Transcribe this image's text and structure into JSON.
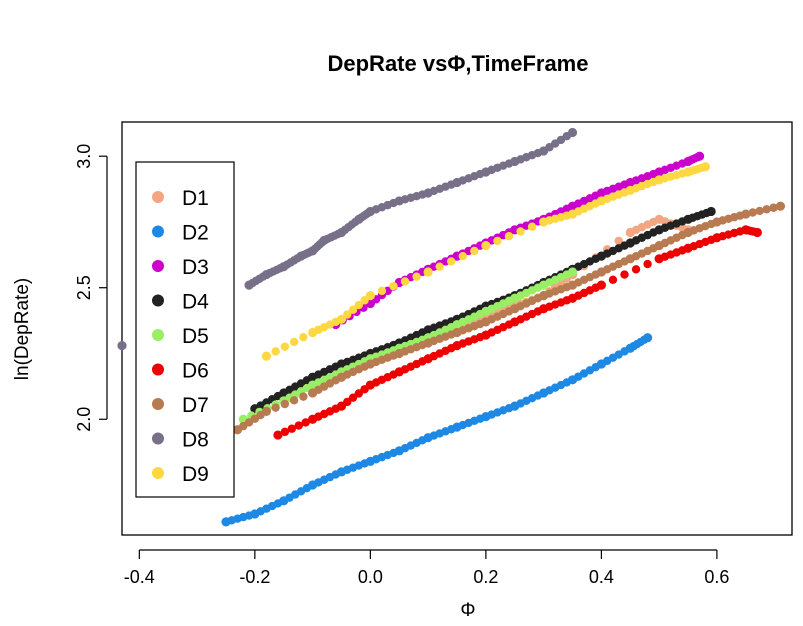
{
  "chart_data": {
    "type": "scatter",
    "title": "DepRate vsΦ,TimeFrame",
    "xlabel": "Φ",
    "ylabel": "ln(DepRate)",
    "xlim": [
      -0.43,
      0.73
    ],
    "ylim": [
      1.56,
      3.13
    ],
    "xticks": [
      "-0.4",
      "-0.2",
      "0.0",
      "0.2",
      "0.4",
      "0.6"
    ],
    "xtick_values": [
      -0.4,
      -0.2,
      0.0,
      0.2,
      0.4,
      0.6
    ],
    "yticks": [
      "2.0",
      "2.5",
      "3.0"
    ],
    "ytick_values": [
      2.0,
      2.5,
      3.0
    ],
    "grid": false,
    "legend_position": "left",
    "series": [
      {
        "name": "D1",
        "color": "#F4A582",
        "x": [
          -0.12,
          -0.05,
          0.0,
          0.05,
          0.1,
          0.15,
          0.2,
          0.25,
          0.3,
          0.35,
          0.45,
          0.5,
          0.55
        ],
        "y": [
          2.12,
          2.16,
          2.22,
          2.27,
          2.31,
          2.35,
          2.39,
          2.43,
          2.47,
          2.55,
          2.71,
          2.76,
          2.72
        ]
      },
      {
        "name": "D2",
        "color": "#1E88E5",
        "x": [
          -0.25,
          -0.2,
          -0.15,
          -0.1,
          -0.05,
          0.0,
          0.05,
          0.1,
          0.15,
          0.2,
          0.25,
          0.3,
          0.35,
          0.4,
          0.45,
          0.48
        ],
        "y": [
          1.61,
          1.64,
          1.69,
          1.75,
          1.8,
          1.84,
          1.88,
          1.93,
          1.97,
          2.01,
          2.05,
          2.1,
          2.15,
          2.21,
          2.27,
          2.31
        ]
      },
      {
        "name": "D3",
        "color": "#CC00CC",
        "x": [
          -0.06,
          0.0,
          0.05,
          0.1,
          0.15,
          0.2,
          0.25,
          0.3,
          0.35,
          0.4,
          0.45,
          0.5,
          0.55,
          0.57
        ],
        "y": [
          2.36,
          2.44,
          2.52,
          2.57,
          2.62,
          2.67,
          2.72,
          2.76,
          2.81,
          2.86,
          2.9,
          2.94,
          2.98,
          3.0
        ]
      },
      {
        "name": "D4",
        "color": "#222222",
        "x": [
          -0.2,
          -0.15,
          -0.1,
          -0.05,
          0.0,
          0.05,
          0.1,
          0.15,
          0.2,
          0.25,
          0.3,
          0.35,
          0.4,
          0.45,
          0.5,
          0.55,
          0.59
        ],
        "y": [
          2.04,
          2.1,
          2.16,
          2.21,
          2.25,
          2.29,
          2.34,
          2.38,
          2.43,
          2.47,
          2.52,
          2.57,
          2.62,
          2.67,
          2.72,
          2.76,
          2.79
        ]
      },
      {
        "name": "D5",
        "color": "#99EE66",
        "x": [
          -0.22,
          -0.15,
          -0.1,
          -0.05,
          0.0,
          0.05,
          0.1,
          0.15,
          0.2,
          0.25,
          0.3,
          0.35
        ],
        "y": [
          2.0,
          2.07,
          2.13,
          2.18,
          2.23,
          2.27,
          2.31,
          2.36,
          2.41,
          2.46,
          2.51,
          2.56
        ]
      },
      {
        "name": "D6",
        "color": "#EE0000",
        "x": [
          -0.16,
          -0.1,
          -0.05,
          0.0,
          0.05,
          0.1,
          0.15,
          0.2,
          0.25,
          0.3,
          0.35,
          0.4,
          0.5,
          0.55,
          0.6,
          0.65,
          0.67
        ],
        "y": [
          1.94,
          2.0,
          2.05,
          2.13,
          2.18,
          2.23,
          2.28,
          2.32,
          2.37,
          2.42,
          2.46,
          2.51,
          2.61,
          2.65,
          2.69,
          2.72,
          2.71
        ]
      },
      {
        "name": "D7",
        "color": "#B87A50",
        "x": [
          -0.23,
          -0.18,
          -0.1,
          -0.05,
          0.0,
          0.05,
          0.1,
          0.15,
          0.2,
          0.25,
          0.3,
          0.35,
          0.4,
          0.45,
          0.5,
          0.55,
          0.6,
          0.65,
          0.71
        ],
        "y": [
          1.96,
          2.03,
          2.1,
          2.16,
          2.21,
          2.25,
          2.29,
          2.33,
          2.37,
          2.42,
          2.47,
          2.51,
          2.56,
          2.61,
          2.66,
          2.71,
          2.75,
          2.78,
          2.81
        ]
      },
      {
        "name": "D8",
        "color": "#777088",
        "x": [
          -0.43,
          -0.21,
          -0.18,
          -0.15,
          -0.12,
          -0.1,
          -0.08,
          -0.05,
          -0.02,
          0.0,
          0.05,
          0.1,
          0.15,
          0.2,
          0.25,
          0.3,
          0.35
        ],
        "y": [
          2.28,
          2.51,
          2.55,
          2.58,
          2.62,
          2.64,
          2.68,
          2.71,
          2.76,
          2.79,
          2.83,
          2.86,
          2.9,
          2.94,
          2.98,
          3.02,
          3.09
        ]
      },
      {
        "name": "D9",
        "color": "#FFD740",
        "x": [
          -0.18,
          -0.1,
          -0.05,
          0.0,
          0.1,
          0.2,
          0.3,
          0.35,
          0.4,
          0.45,
          0.5,
          0.55,
          0.58
        ],
        "y": [
          2.24,
          2.33,
          2.38,
          2.47,
          2.56,
          2.66,
          2.75,
          2.78,
          2.83,
          2.87,
          2.91,
          2.94,
          2.96
        ]
      }
    ]
  }
}
